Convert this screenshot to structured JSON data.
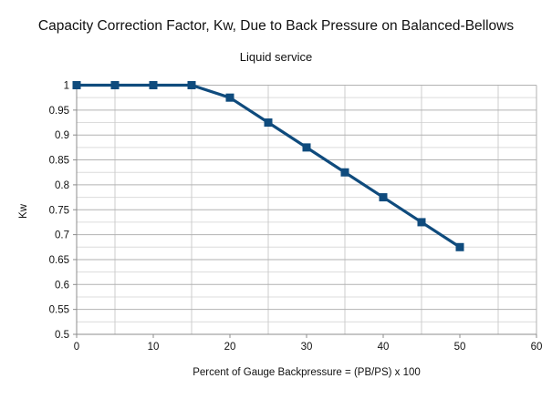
{
  "title": "Capacity Correction Factor, Kw, Due to Back Pressure on Balanced-Bellows",
  "subtitle": "Liquid service",
  "chart_data": {
    "type": "line",
    "title": "Capacity Correction Factor, Kw, Due to Back Pressure on Balanced-Bellows",
    "subtitle": "Liquid service",
    "xlabel": "Percent of Gauge Backpressure = (PB/PS) x 100",
    "ylabel": "Kw",
    "xlim": [
      0,
      60
    ],
    "ylim": [
      0.5,
      1.0
    ],
    "x": [
      0,
      5,
      10,
      15,
      20,
      25,
      30,
      35,
      40,
      45,
      50
    ],
    "series": [
      {
        "name": "Kw",
        "values": [
          1,
          1,
          1,
          1,
          0.975,
          0.925,
          0.875,
          0.825,
          0.775,
          0.725,
          0.675
        ]
      }
    ],
    "x_ticks": [
      0,
      10,
      20,
      30,
      40,
      50,
      60
    ],
    "x_tick_labels": [
      "0",
      "10",
      "20",
      "30",
      "40",
      "50",
      "60"
    ],
    "y_ticks": [
      1,
      0.95,
      0.9,
      0.85,
      0.8,
      0.75,
      0.7,
      0.65,
      0.6,
      0.55,
      0.5
    ],
    "y_tick_labels": [
      "1",
      "0.95",
      "0.9",
      "0.85",
      "0.8",
      "0.75",
      "0.7",
      "0.65",
      "0.6",
      "0.55",
      "0.5"
    ],
    "y_minor_interval": 0.025,
    "x_gridlines_at": [
      5,
      15,
      25,
      35,
      45,
      55
    ],
    "grid": true,
    "legend": "none",
    "marker": "square",
    "line_color": "#0f4b7d"
  },
  "colors": {
    "series_line": "#0f4b7d",
    "major_gridline": "#b2b2b2",
    "minor_gridline": "#dcdcdc",
    "vertical_gridline": "#cccccc",
    "axis": "#8c8c8c",
    "background": "#ffffff"
  }
}
